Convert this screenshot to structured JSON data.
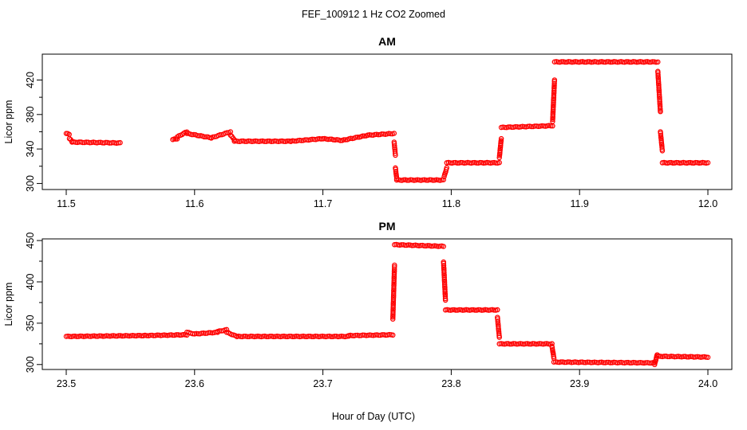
{
  "figure": {
    "title": "FEF_100912  1 Hz CO2 Zoomed",
    "xlabel": "Hour of Day (UTC)"
  },
  "chart_data": [
    {
      "type": "scatter",
      "title": "AM",
      "xlabel": "",
      "ylabel": "Licor ppm",
      "xlim": [
        11.5,
        12.0
      ],
      "ylim": [
        293,
        450
      ],
      "xticks": [
        11.5,
        11.6,
        11.7,
        11.8,
        11.9,
        12.0
      ],
      "xtick_labels": [
        "11.5",
        "11.6",
        "11.7",
        "11.8",
        "11.9",
        "12.0"
      ],
      "yticks": [
        300,
        340,
        380,
        420
      ],
      "ytick_labels": [
        "300",
        "340",
        "380",
        "420"
      ],
      "grid": false,
      "color": "#ff0000",
      "segments": [
        {
          "x": [
            11.5,
            11.5023
          ],
          "y": [
            358,
            357
          ]
        },
        {
          "x": [
            11.5025,
            11.5045
          ],
          "y": [
            352,
            349
          ]
        },
        {
          "x": [
            11.5045,
            11.542
          ],
          "y": [
            348,
            347
          ]
        },
        {
          "x": [
            11.583,
            11.5865
          ],
          "y": [
            351,
            352
          ]
        },
        {
          "x": [
            11.5865,
            11.594
          ],
          "y": [
            354,
            360
          ]
        },
        {
          "x": [
            11.594,
            11.613
          ],
          "y": [
            358,
            353
          ]
        },
        {
          "x": [
            11.613,
            11.628
          ],
          "y": [
            353,
            360
          ]
        },
        {
          "x": [
            11.628,
            11.631
          ],
          "y": [
            356,
            351
          ]
        },
        {
          "x": [
            11.631,
            11.675
          ],
          "y": [
            349,
            349
          ]
        },
        {
          "x": [
            11.675,
            11.7
          ],
          "y": [
            349,
            352
          ]
        },
        {
          "x": [
            11.7,
            11.715
          ],
          "y": [
            352,
            350
          ]
        },
        {
          "x": [
            11.715,
            11.735
          ],
          "y": [
            350,
            356
          ]
        },
        {
          "x": [
            11.735,
            11.7555
          ],
          "y": [
            356,
            358
          ]
        },
        {
          "x": [
            11.7555,
            11.7565
          ],
          "y": [
            348,
            333
          ]
        },
        {
          "x": [
            11.7565,
            11.7575
          ],
          "y": [
            318,
            306
          ]
        },
        {
          "x": [
            11.7575,
            11.794
          ],
          "y": [
            304,
            304
          ]
        },
        {
          "x": [
            11.7945,
            11.7965
          ],
          "y": [
            308,
            318
          ]
        },
        {
          "x": [
            11.7965,
            11.8375
          ],
          "y": [
            324,
            324
          ]
        },
        {
          "x": [
            11.8375,
            11.839
          ],
          "y": [
            330,
            352
          ]
        },
        {
          "x": [
            11.839,
            11.879
          ],
          "y": [
            365,
            367
          ]
        },
        {
          "x": [
            11.879,
            11.8805
          ],
          "y": [
            372,
            420
          ]
        },
        {
          "x": [
            11.8805,
            11.961
          ],
          "y": [
            441,
            441
          ]
        },
        {
          "x": [
            11.961,
            11.963
          ],
          "y": [
            430,
            383
          ]
        },
        {
          "x": [
            11.963,
            11.9645
          ],
          "y": [
            360,
            338
          ]
        },
        {
          "x": [
            11.9645,
            12.0
          ],
          "y": [
            324,
            324
          ]
        }
      ]
    },
    {
      "type": "scatter",
      "title": "PM",
      "xlabel": "",
      "ylabel": "Licor ppm",
      "xlim": [
        23.5,
        24.0
      ],
      "ylim": [
        294,
        452
      ],
      "xticks": [
        23.5,
        23.6,
        23.7,
        23.8,
        23.9,
        24.0
      ],
      "xtick_labels": [
        "23.5",
        "23.6",
        "23.7",
        "23.8",
        "23.9",
        "24.0"
      ],
      "yticks": [
        300,
        350,
        400,
        450
      ],
      "ytick_labels": [
        "300",
        "350",
        "400",
        "450"
      ],
      "grid": false,
      "color": "#ff0000",
      "segments": [
        {
          "x": [
            23.5,
            23.56
          ],
          "y": [
            334,
            335
          ]
        },
        {
          "x": [
            23.56,
            23.594
          ],
          "y": [
            335,
            336
          ]
        },
        {
          "x": [
            23.594,
            23.6
          ],
          "y": [
            339,
            337
          ]
        },
        {
          "x": [
            23.6,
            23.618
          ],
          "y": [
            337,
            339
          ]
        },
        {
          "x": [
            23.618,
            23.625
          ],
          "y": [
            340,
            342
          ]
        },
        {
          "x": [
            23.625,
            23.633
          ],
          "y": [
            339,
            334
          ]
        },
        {
          "x": [
            23.633,
            23.72
          ],
          "y": [
            334,
            334
          ]
        },
        {
          "x": [
            23.72,
            23.7545
          ],
          "y": [
            335,
            336
          ]
        },
        {
          "x": [
            23.7545,
            23.7558
          ],
          "y": [
            355,
            420
          ]
        },
        {
          "x": [
            23.7558,
            23.794
          ],
          "y": [
            445,
            443
          ]
        },
        {
          "x": [
            23.794,
            23.7955
          ],
          "y": [
            424,
            378
          ]
        },
        {
          "x": [
            23.7955,
            23.836
          ],
          "y": [
            366,
            366
          ]
        },
        {
          "x": [
            23.836,
            23.8375
          ],
          "y": [
            357,
            333
          ]
        },
        {
          "x": [
            23.8375,
            23.8785
          ],
          "y": [
            325,
            325
          ]
        },
        {
          "x": [
            23.8785,
            23.88
          ],
          "y": [
            322,
            308
          ]
        },
        {
          "x": [
            23.88,
            23.9585
          ],
          "y": [
            303,
            302
          ]
        },
        {
          "x": [
            23.9585,
            23.9605
          ],
          "y": [
            300,
            312
          ]
        },
        {
          "x": [
            23.9605,
            24.0
          ],
          "y": [
            310,
            309
          ]
        }
      ]
    }
  ]
}
